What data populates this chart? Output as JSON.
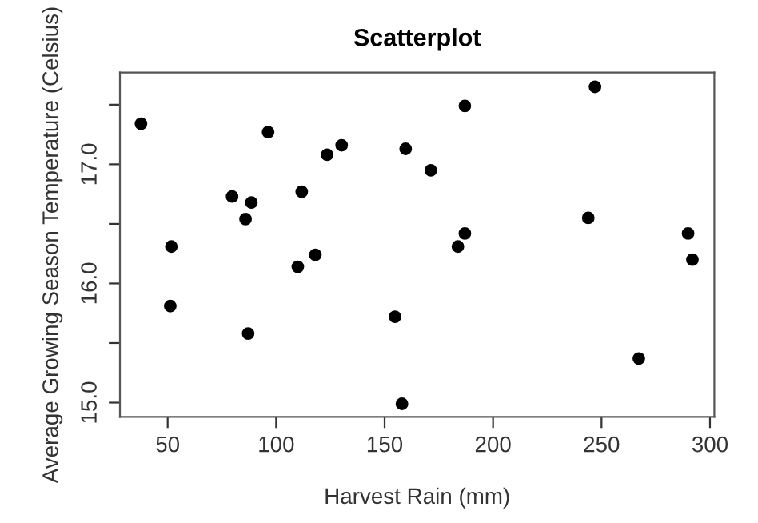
{
  "chart_data": {
    "type": "scatter",
    "title": "Scatterplot",
    "xlabel": "Harvest Rain (mm)",
    "ylabel": "Average Growing Season Temperature (Celsius)",
    "x": [
      37.7,
      96.3,
      130.2,
      123.5,
      79.7,
      88.6,
      111.8,
      85.9,
      51.7,
      118.1,
      110,
      51.2,
      87.1,
      247,
      187,
      159.7,
      171.3,
      243.9,
      187,
      183.8,
      289.9,
      291.9,
      154.8,
      267.2,
      158
    ],
    "series": [
      {
        "color": "#000000",
        "values": [
          17.34,
          17.27,
          17.16,
          17.08,
          16.73,
          16.68,
          16.77,
          16.54,
          16.31,
          16.24,
          16.14,
          15.81,
          15.58,
          17.65,
          17.49,
          17.13,
          16.95,
          16.55,
          16.42,
          16.31,
          16.42,
          16.2,
          15.72,
          15.37,
          14.99
        ]
      }
    ],
    "xlim": [
      28,
      302
    ],
    "ylim": [
      14.88,
      17.77
    ],
    "xticks": [
      50,
      100,
      150,
      200,
      250,
      300
    ],
    "yticks": [
      {
        "value": 15,
        "label": "15.0"
      },
      {
        "value": 15.5,
        "label": null
      },
      {
        "value": 16,
        "label": "16.0"
      },
      {
        "value": 16.5,
        "label": null
      },
      {
        "value": 17,
        "label": "17.0"
      },
      {
        "value": 17.5,
        "label": null
      }
    ],
    "marker": "circle",
    "grid": false
  }
}
